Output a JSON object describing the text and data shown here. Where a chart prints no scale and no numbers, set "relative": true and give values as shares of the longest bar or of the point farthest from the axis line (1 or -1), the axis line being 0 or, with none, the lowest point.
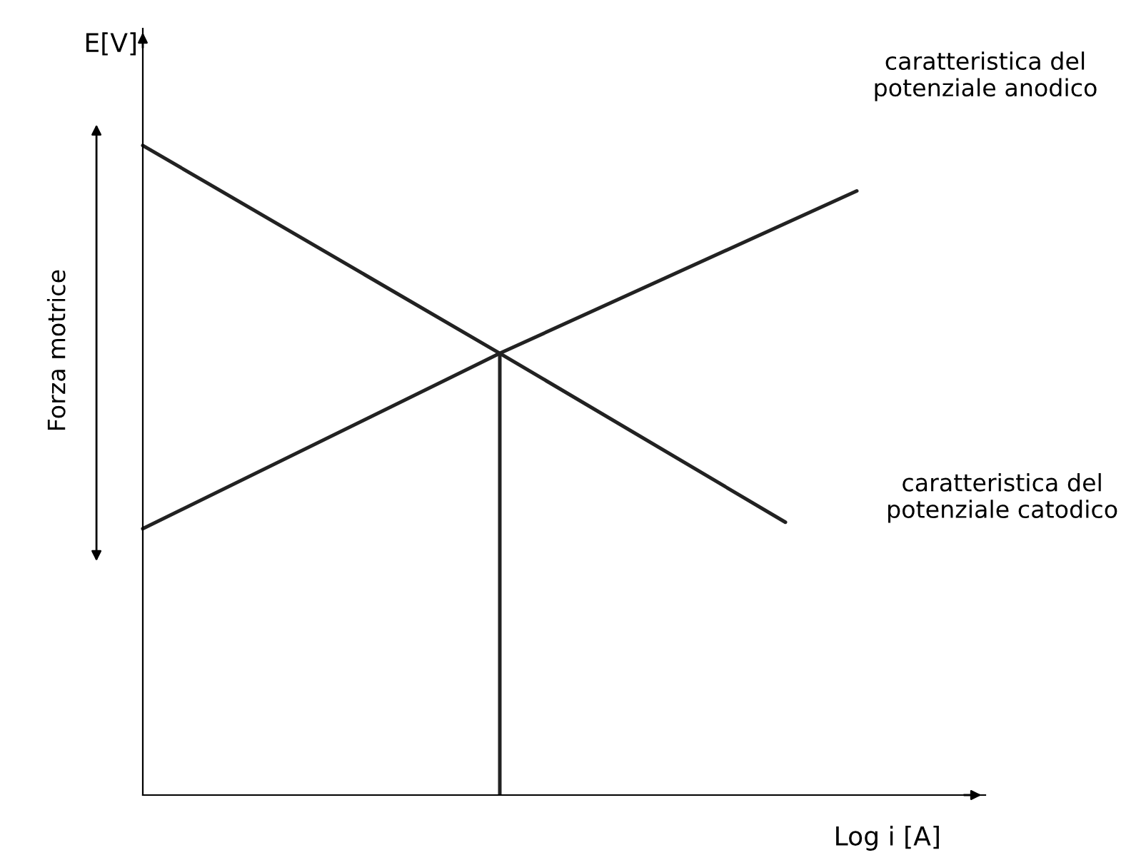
{
  "chart_data": {
    "type": "line",
    "relative": true,
    "xlabel": "Log i [A]",
    "ylabel": "E[V]",
    "categories": [
      null,
      null,
      null,
      null,
      null,
      null,
      null,
      null,
      null,
      null,
      null
    ],
    "series": [
      {
        "color": "#222222",
        "values": [
          0.41,
          null,
          null,
          null,
          null,
          0.68,
          null,
          null,
          null,
          null,
          0.93
        ]
      },
      {
        "color": "#222222",
        "values": [
          1.0,
          null,
          null,
          null,
          null,
          0.68,
          null,
          null,
          null,
          0.42,
          null
        ]
      }
    ],
    "annotations": [
      "caratteristica del\npotenziale anodico",
      "caratteristica del\npotenziale catodico",
      "Forza motrice"
    ],
    "grid": false,
    "legend": false
  }
}
